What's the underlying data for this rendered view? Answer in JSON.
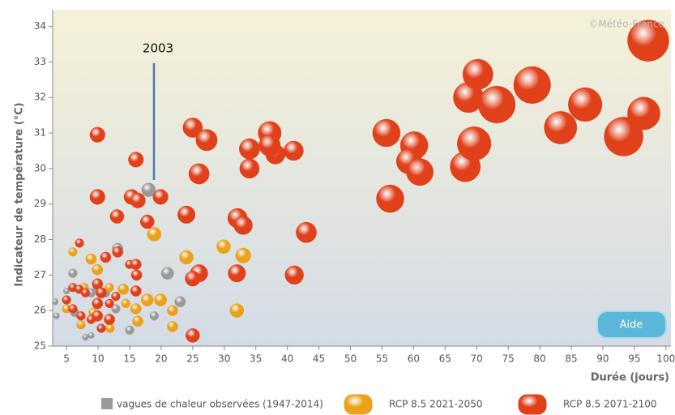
{
  "chart_data": {
    "type": "bubble",
    "ylabel": "Indicateur de température (°C)",
    "xlabel": "Durée (jours)",
    "annotation": "2003",
    "credit": "©Météo-France",
    "button": "Aide",
    "xlim": [
      2.8,
      100.8
    ],
    "xticks": [
      5,
      10,
      15,
      20,
      25,
      30,
      35,
      40,
      45,
      50,
      55,
      60,
      65,
      70,
      75,
      80,
      85,
      90,
      95,
      100
    ],
    "ylim": [
      25,
      34.47
    ],
    "yticks": [
      25,
      26,
      27,
      28,
      29,
      30,
      31,
      32,
      33,
      34
    ],
    "series": [
      {
        "name": "vagues de chaleur observées (1947-2014)",
        "color": "#9a9a9a",
        "x": [
          18,
          13.1,
          21,
          23,
          18.9,
          15,
          6,
          9.9,
          12.8,
          8,
          8.9,
          3.4,
          3.2,
          5,
          8,
          8.9,
          6.3,
          11.2
        ],
        "values": [
          29.4,
          27.75,
          27.05,
          26.25,
          25.85,
          25.45,
          27.05,
          26.65,
          26.05,
          26.55,
          26.5,
          25.85,
          26.25,
          26.55,
          25.25,
          25.3,
          25.95,
          26.5
        ],
        "sizes": [
          5,
          3,
          4,
          3,
          2,
          2,
          2,
          2,
          2,
          2,
          2,
          1,
          1,
          1,
          1,
          1,
          2,
          2
        ]
      },
      {
        "name": "RCP 8.5 2021-2050",
        "color": "#eba21a",
        "x": [
          18.9,
          29.9,
          33,
          24,
          32,
          17.8,
          19.9,
          21.8,
          21.8,
          16,
          16.3,
          14,
          8.9,
          9.9,
          6,
          7.8,
          11.8,
          11.9,
          7.3,
          9.2,
          5,
          14.4
        ],
        "values": [
          28.15,
          27.8,
          27.55,
          27.5,
          26,
          26.3,
          26.3,
          26,
          25.55,
          26.05,
          25.7,
          26.6,
          27.45,
          27.15,
          27.65,
          26.65,
          26.65,
          25.5,
          25.6,
          25.95,
          26.05,
          26.2
        ],
        "sizes": [
          5,
          5,
          6,
          5,
          5,
          4,
          4,
          3,
          3,
          3,
          3,
          3,
          3,
          3,
          2,
          2,
          2,
          2,
          2,
          2,
          2,
          2
        ]
      },
      {
        "name": "RCP 8.5 2071-2100",
        "color": "#e0401a",
        "x": [
          55.7,
          56.3,
          60.1,
          59.3,
          61,
          68.2,
          69.6,
          68.7,
          70.2,
          73.2,
          78.8,
          87.2,
          83.3,
          93.3,
          96.5,
          97.2,
          43,
          41.1,
          41,
          38.1,
          37.2,
          37.2,
          34,
          34,
          32.1,
          33,
          32,
          25,
          27.2,
          26,
          24,
          26,
          25,
          25,
          16,
          19.9,
          15.3,
          16.3,
          9.9,
          9.9,
          13,
          17.8,
          7.05,
          11.2,
          13.1,
          15,
          16,
          16.1,
          9.9,
          10.5,
          6,
          7,
          8,
          11.8,
          9.9,
          16,
          6,
          7.3,
          9.9,
          11.8,
          10.5,
          12.8,
          5,
          8.9
        ],
        "values": [
          31,
          29.15,
          30.65,
          30.2,
          29.9,
          30.05,
          30.7,
          32,
          32.65,
          31.8,
          32.35,
          31.8,
          31.15,
          30.9,
          31.55,
          33.6,
          28.2,
          27,
          30.5,
          30.4,
          31,
          30.65,
          30.55,
          30,
          28.6,
          28.4,
          27.05,
          31.15,
          30.8,
          29.85,
          28.7,
          27.05,
          26.9,
          25.3,
          30.25,
          29.2,
          29.2,
          29.1,
          30.95,
          29.2,
          28.65,
          28.5,
          27.9,
          27.5,
          27.65,
          27.3,
          27.3,
          27,
          26.75,
          26.5,
          26.65,
          26.6,
          26.5,
          26.2,
          26.2,
          26.55,
          26.05,
          25.85,
          25.85,
          25.75,
          25.5,
          26.4,
          26.3,
          25.75
        ],
        "sizes": [
          20,
          20,
          20,
          17,
          19,
          24,
          30,
          24,
          24,
          36,
          36,
          30,
          28,
          40,
          28,
          45,
          11,
          9,
          10,
          10,
          14,
          12,
          11,
          10,
          10,
          9,
          8,
          10,
          12,
          11,
          8,
          8,
          6,
          5,
          6,
          6,
          6,
          6,
          6,
          6,
          5,
          5,
          2,
          3,
          3,
          2,
          3,
          3,
          3,
          3,
          2,
          2,
          2,
          2,
          3,
          3,
          2,
          2,
          3,
          3,
          2,
          2,
          2,
          2
        ]
      }
    ]
  }
}
